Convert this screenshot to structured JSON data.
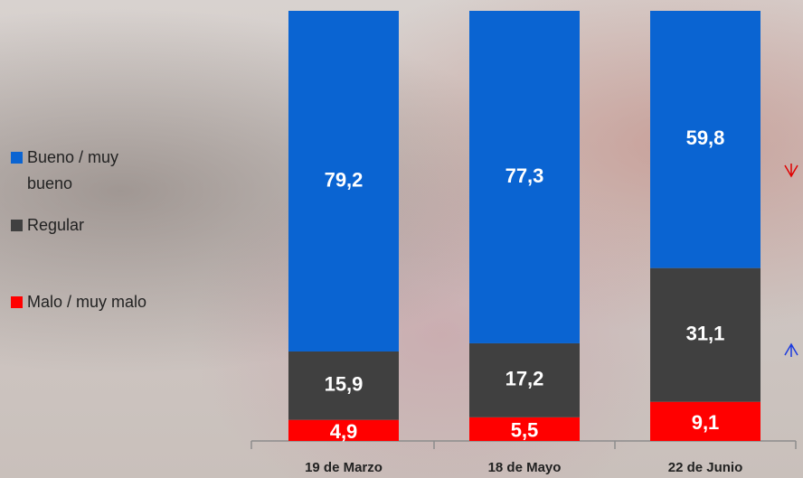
{
  "chart_data": {
    "type": "bar",
    "stacked": true,
    "categories": [
      "19 de Marzo",
      "18 de Mayo",
      "22 de Junio"
    ],
    "series": [
      {
        "name": "Malo / muy malo",
        "color": "#ff0000",
        "values": [
          4.9,
          5.5,
          9.1
        ],
        "value_labels": [
          "4,9",
          "5,5",
          "9,1"
        ]
      },
      {
        "name": "Regular",
        "color": "#404040",
        "values": [
          15.9,
          17.2,
          31.1
        ],
        "value_labels": [
          "15,9",
          "17,2",
          "31,1"
        ]
      },
      {
        "name": "Bueno / muy bueno",
        "color": "#0a64d2",
        "values": [
          79.2,
          77.3,
          59.8
        ],
        "value_labels": [
          "79,2",
          "77,3",
          "59,8"
        ]
      }
    ],
    "ylim": [
      0,
      100
    ]
  }
}
